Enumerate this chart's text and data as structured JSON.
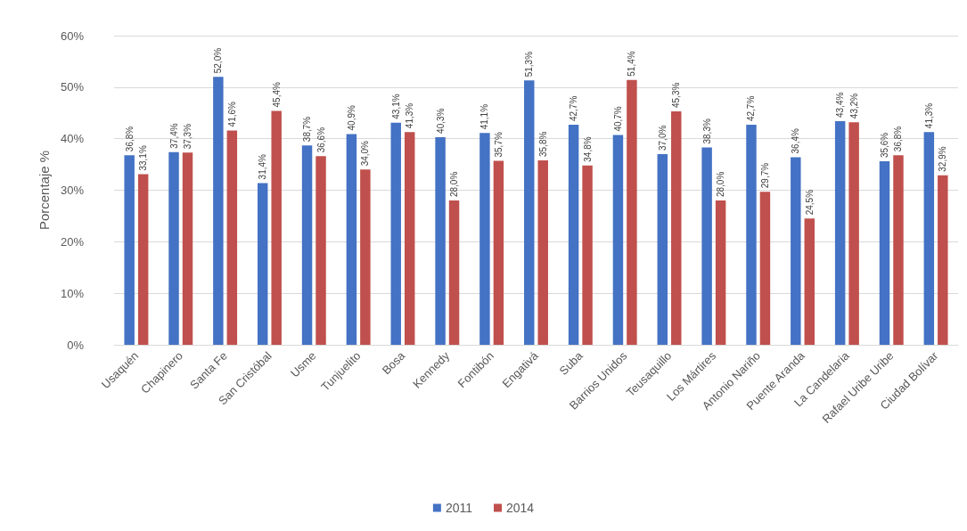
{
  "chart_data": {
    "type": "bar",
    "ylabel": "Porcentaje %",
    "categories": [
      "Usaquén",
      "Chapinero",
      "Santa Fe",
      "San Cristóbal",
      "Usme",
      "Tunjuelito",
      "Bosa",
      "Kennedy",
      "Fontibón",
      "Engativá",
      "Suba",
      "Barrios Unidos",
      "Teusaquillo",
      "Los Mártires",
      "Antonio Nariño",
      "Puente Aranda",
      "La Candelaria",
      "Rafael Uribe Uribe",
      "Ciudad Bolívar"
    ],
    "series": [
      {
        "name": "2011",
        "color": "#4472c4",
        "values": [
          36.8,
          37.4,
          52.0,
          31.4,
          38.7,
          40.9,
          43.1,
          40.3,
          41.1,
          51.3,
          42.7,
          40.7,
          37.0,
          38.3,
          42.7,
          36.4,
          43.4,
          35.6,
          41.3
        ],
        "value_labels": [
          "36,8%",
          "37,4%",
          "52,0%",
          "31,4%",
          "38,7%",
          "40,9%",
          "43,1%",
          "40,3%",
          "41,1%",
          "51,3%",
          "42,7%",
          "40,7%",
          "37,0%",
          "38,3%",
          "42,7%",
          "36,4%",
          "43,4%",
          "35,6%",
          "41,3%"
        ]
      },
      {
        "name": "2014",
        "color": "#c0504d",
        "values": [
          33.1,
          37.3,
          41.6,
          45.4,
          36.6,
          34.0,
          41.3,
          28.0,
          35.7,
          35.8,
          34.8,
          51.4,
          45.3,
          28.0,
          29.7,
          24.5,
          43.2,
          36.8,
          32.9
        ],
        "value_labels": [
          "33,1%",
          "37,3%",
          "41,6%",
          "45,4%",
          "36,6%",
          "34,0%",
          "41,3%",
          "28,0%",
          "35,7%",
          "35,8%",
          "34,8%",
          "51,4%",
          "45,3%",
          "28,0%",
          "29,7%",
          "24,5%",
          "43,2%",
          "36,8%",
          "32,9%"
        ]
      }
    ],
    "ylim": [
      0,
      60
    ],
    "yticks": [
      {
        "value": 0,
        "label": "0%"
      },
      {
        "value": 10,
        "label": "10%"
      },
      {
        "value": 20,
        "label": "20%"
      },
      {
        "value": 30,
        "label": "30%"
      },
      {
        "value": 40,
        "label": "40%"
      },
      {
        "value": 50,
        "label": "50%"
      },
      {
        "value": 60,
        "label": "60%"
      }
    ],
    "grid": "y",
    "legend": "bottom"
  }
}
